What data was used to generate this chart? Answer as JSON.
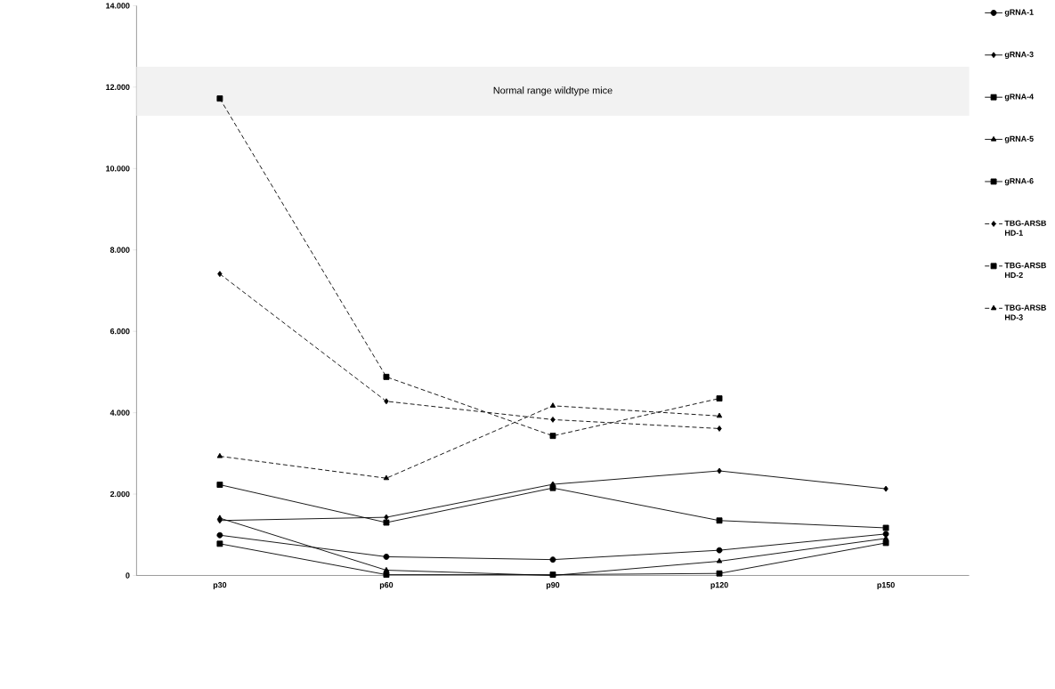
{
  "chart_data": {
    "type": "line",
    "categories": [
      "p30",
      "p60",
      "p90",
      "p120",
      "p150"
    ],
    "ylim": [
      0,
      14000
    ],
    "yticks": [
      0,
      {
        "value": 2000,
        "label": "2.000"
      },
      {
        "value": 4000,
        "label": "4.000"
      },
      {
        "value": 6000,
        "label": "6.000"
      },
      {
        "value": 8000,
        "label": "8.000"
      },
      {
        "value": 10000,
        "label": "10.000"
      },
      {
        "value": 12000,
        "label": "12.000"
      },
      {
        "value": 14000,
        "label": "14.000"
      }
    ],
    "legend": "right",
    "bands": [
      {
        "axis": "y",
        "from": 11300,
        "to": 12500,
        "label": "Normal range wildtype mice",
        "color": "#f2f2f2"
      }
    ],
    "series": [
      {
        "name": "gRNA-1",
        "color": "#000000",
        "marker": "circle",
        "line_style": "solid",
        "values": [
          990,
          460,
          390,
          620,
          1020
        ]
      },
      {
        "name": "gRNA-3",
        "color": "#000000",
        "marker": "diamond",
        "line_style": "solid",
        "values": [
          1350,
          1430,
          2240,
          2570,
          2130
        ]
      },
      {
        "name": "gRNA-4",
        "color": "#000000",
        "marker": "square",
        "line_style": "solid",
        "values": [
          780,
          20,
          20,
          50,
          800
        ]
      },
      {
        "name": "gRNA-5",
        "color": "#000000",
        "marker": "triangle",
        "line_style": "solid",
        "values": [
          1410,
          130,
          0,
          350,
          910
        ]
      },
      {
        "name": "gRNA-6",
        "color": "#000000",
        "marker": "square",
        "line_style": "solid",
        "values": [
          2230,
          1300,
          2150,
          1350,
          1170
        ]
      },
      {
        "name": "TBG-ARSB HD-1",
        "color": "#000000",
        "marker": "diamond",
        "line_style": "dashed",
        "values": [
          7410,
          4280,
          3830,
          3610,
          null
        ]
      },
      {
        "name": "TBG-ARSB HD-2",
        "color": "#000000",
        "marker": "square",
        "line_style": "dashed",
        "values": [
          11720,
          4880,
          3430,
          4350,
          null
        ]
      },
      {
        "name": "TBG-ARSB HD-3",
        "color": "#000000",
        "marker": "triangle",
        "line_style": "dashed",
        "values": [
          2930,
          2390,
          4170,
          3920,
          null
        ]
      }
    ]
  }
}
